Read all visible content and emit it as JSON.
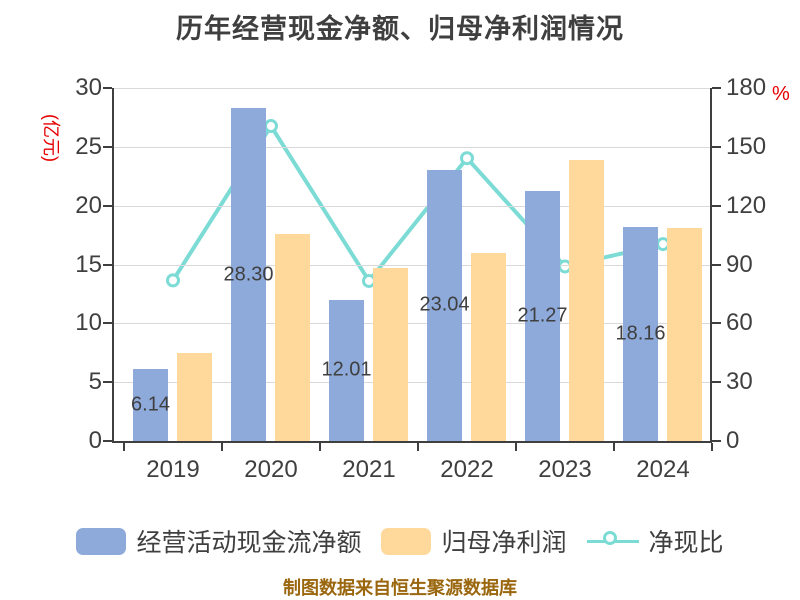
{
  "title": "历年经营现金净额、归母净利润情况",
  "caption": "制图数据来自恒生聚源数据库",
  "axes": {
    "left_unit": "(亿元)",
    "right_unit": "%",
    "unit_color": "#e60000",
    "left_ticks": [
      "0",
      "5",
      "10",
      "15",
      "20",
      "25",
      "30"
    ],
    "right_ticks": [
      "0",
      "30",
      "60",
      "90",
      "120",
      "150",
      "180"
    ]
  },
  "legend": [
    {
      "label": "经营活动现金流净额",
      "type": "bar",
      "color": "#8eaadb"
    },
    {
      "label": "归母净利润",
      "type": "bar",
      "color": "#ffd99c"
    },
    {
      "label": "净现比",
      "type": "line",
      "color": "#7cdbd5"
    }
  ],
  "chart_data": {
    "type": "combo bar+line",
    "title": "历年经营现金净额、归母净利润情况",
    "categories": [
      "2019",
      "2020",
      "2021",
      "2022",
      "2023",
      "2024"
    ],
    "series": [
      {
        "name": "经营活动现金流净额",
        "type": "bar",
        "axis": "left",
        "color": "#8eaadb",
        "values": [
          6.14,
          28.3,
          12.01,
          23.04,
          21.27,
          18.16
        ],
        "labels": [
          "6.14",
          "28.30",
          "12.01",
          "23.04",
          "21.27",
          "18.16"
        ]
      },
      {
        "name": "归母净利润",
        "type": "bar",
        "axis": "left",
        "color": "#ffd99c",
        "values": [
          7.5,
          17.6,
          14.7,
          16.0,
          23.9,
          18.1
        ]
      },
      {
        "name": "净现比",
        "type": "line",
        "axis": "right",
        "color": "#7cdbd5",
        "marker": "circle-white-fill",
        "values": [
          81.9,
          160.6,
          81.6,
          144.2,
          89.0,
          100.4
        ]
      }
    ],
    "left_axis": {
      "label": "(亿元)",
      "range": [
        0,
        30
      ],
      "tick_step": 5
    },
    "right_axis": {
      "label": "%",
      "range": [
        0,
        180
      ],
      "tick_step": 30
    },
    "grid": true,
    "legend_position": "bottom"
  }
}
